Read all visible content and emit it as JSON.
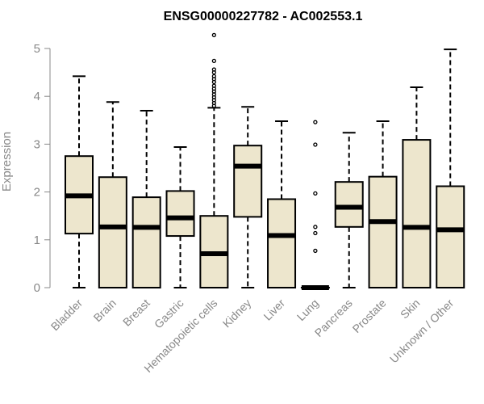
{
  "chart_data": {
    "type": "boxplot",
    "title": "ENSG00000227782 - AC002553.1",
    "xlabel": "",
    "ylabel": "Expression",
    "ylim": [
      0,
      5.3
    ],
    "yticks": [
      0,
      1,
      2,
      3,
      4,
      5
    ],
    "box_fill": "#ede6cd",
    "box_stroke": "#000000",
    "axis_color": "#888888",
    "categories": [
      "Bladder",
      "Brain",
      "Breast",
      "Gastric",
      "Hematopoietic cells",
      "Kidney",
      "Liver",
      "Lung",
      "Pancreas",
      "Prostate",
      "Skin",
      "Unknown / Other"
    ],
    "boxes": [
      {
        "whisker_low": 0,
        "q1": 1.13,
        "median": 1.92,
        "q3": 2.75,
        "whisker_high": 4.42,
        "outliers": []
      },
      {
        "whisker_low": 0,
        "q1": 0,
        "median": 1.27,
        "q3": 2.31,
        "whisker_high": 3.88,
        "outliers": []
      },
      {
        "whisker_low": 0,
        "q1": 0,
        "median": 1.26,
        "q3": 1.89,
        "whisker_high": 3.7,
        "outliers": []
      },
      {
        "whisker_low": 0,
        "q1": 1.08,
        "median": 1.46,
        "q3": 2.02,
        "whisker_high": 2.94,
        "outliers": []
      },
      {
        "whisker_low": 0,
        "q1": 0,
        "median": 0.71,
        "q3": 1.5,
        "whisker_high": 3.76,
        "outliers": [
          3.8,
          3.86,
          3.92,
          3.98,
          4.04,
          4.1,
          4.16,
          4.22,
          4.3,
          4.36,
          4.42,
          4.5,
          4.56,
          4.74,
          5.28
        ]
      },
      {
        "whisker_low": 0,
        "q1": 1.48,
        "median": 2.54,
        "q3": 2.97,
        "whisker_high": 3.78,
        "outliers": []
      },
      {
        "whisker_low": 0,
        "q1": 0,
        "median": 1.09,
        "q3": 1.85,
        "whisker_high": 3.48,
        "outliers": []
      },
      {
        "whisker_low": 0,
        "q1": 0,
        "median": 0,
        "q3": 0,
        "whisker_high": 0,
        "outliers": [
          0.77,
          1.14,
          1.27,
          1.97,
          2.99,
          3.46
        ]
      },
      {
        "whisker_low": 0,
        "q1": 1.27,
        "median": 1.68,
        "q3": 2.21,
        "whisker_high": 3.24,
        "outliers": []
      },
      {
        "whisker_low": 0,
        "q1": 0,
        "median": 1.38,
        "q3": 2.32,
        "whisker_high": 3.48,
        "outliers": []
      },
      {
        "whisker_low": 0,
        "q1": 0,
        "median": 1.26,
        "q3": 3.09,
        "whisker_high": 4.19,
        "outliers": []
      },
      {
        "whisker_low": 0,
        "q1": 0,
        "median": 1.21,
        "q3": 2.12,
        "whisker_high": 4.98,
        "outliers": []
      }
    ]
  }
}
